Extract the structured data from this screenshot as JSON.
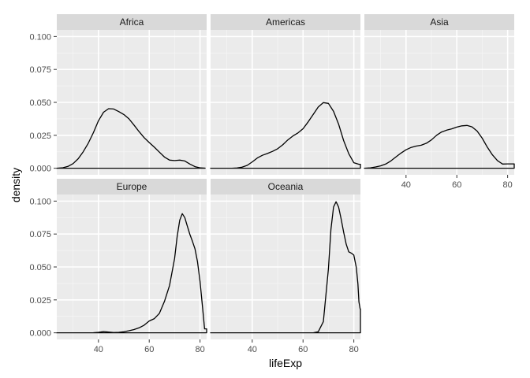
{
  "chart_data": {
    "type": "area",
    "faceted": true,
    "xlabel": "lifeExp",
    "ylabel": "density",
    "xlim": [
      23.6,
      82.6
    ],
    "ylim": [
      -0.005,
      0.105
    ],
    "x_ticks": [
      40,
      60,
      80
    ],
    "x_tick_labels": [
      "40",
      "60",
      "80"
    ],
    "y_ticks": [
      0,
      0.025,
      0.05,
      0.075,
      0.1
    ],
    "y_tick_labels": [
      "0.000",
      "0.025",
      "0.050",
      "0.075",
      "0.100"
    ],
    "grid": true,
    "colors": {
      "panel_bg": "#ebebeb",
      "grid_major": "#ffffff",
      "grid_minor": "#f5f5f5",
      "strip_bg": "#d9d9d9",
      "line": "#000000",
      "tick_text": "#4d4d4d"
    },
    "panels": [
      {
        "name": "Africa",
        "x_min": 23.6,
        "x_max": 76.4,
        "points": [
          [
            23.6,
            0
          ],
          [
            26,
            0.0004
          ],
          [
            28,
            0.0014
          ],
          [
            30,
            0.0035
          ],
          [
            32,
            0.0072
          ],
          [
            34,
            0.0125
          ],
          [
            36,
            0.019
          ],
          [
            38,
            0.027
          ],
          [
            40,
            0.036
          ],
          [
            42,
            0.0425
          ],
          [
            44,
            0.0452
          ],
          [
            46,
            0.045
          ],
          [
            48,
            0.043
          ],
          [
            50,
            0.0408
          ],
          [
            52,
            0.0375
          ],
          [
            54,
            0.0328
          ],
          [
            56,
            0.0278
          ],
          [
            58,
            0.0232
          ],
          [
            60,
            0.0195
          ],
          [
            62,
            0.016
          ],
          [
            64,
            0.0122
          ],
          [
            66,
            0.0085
          ],
          [
            68,
            0.0062
          ],
          [
            70,
            0.0058
          ],
          [
            72,
            0.0062
          ],
          [
            74,
            0.0055
          ],
          [
            76,
            0.0032
          ],
          [
            78,
            0.0012
          ],
          [
            80,
            0.0003
          ],
          [
            82,
            0.0001
          ]
        ]
      },
      {
        "name": "Americas",
        "x_min": 37.6,
        "x_max": 80.7,
        "points": [
          [
            23.6,
            0
          ],
          [
            28,
            0
          ],
          [
            32,
            0
          ],
          [
            34,
            0.0002
          ],
          [
            36,
            0.0008
          ],
          [
            38,
            0.0022
          ],
          [
            40,
            0.0048
          ],
          [
            42,
            0.0078
          ],
          [
            44,
            0.0098
          ],
          [
            46,
            0.0112
          ],
          [
            48,
            0.0128
          ],
          [
            50,
            0.0148
          ],
          [
            52,
            0.0178
          ],
          [
            54,
            0.0215
          ],
          [
            56,
            0.0245
          ],
          [
            58,
            0.0268
          ],
          [
            60,
            0.03
          ],
          [
            62,
            0.0352
          ],
          [
            64,
            0.0408
          ],
          [
            66,
            0.0465
          ],
          [
            68,
            0.0498
          ],
          [
            70,
            0.0492
          ],
          [
            72,
            0.0432
          ],
          [
            74,
            0.0335
          ],
          [
            76,
            0.021
          ],
          [
            78,
            0.011
          ],
          [
            80,
            0.0042
          ],
          [
            82,
            0.003
          ],
          [
            82.6,
            0.003
          ]
        ]
      },
      {
        "name": "Asia",
        "x_min": 28.8,
        "x_max": 82.6,
        "points": [
          [
            23.6,
            0
          ],
          [
            26,
            0.0003
          ],
          [
            28,
            0.001
          ],
          [
            30,
            0.0018
          ],
          [
            32,
            0.0032
          ],
          [
            34,
            0.0055
          ],
          [
            36,
            0.0085
          ],
          [
            38,
            0.0115
          ],
          [
            40,
            0.014
          ],
          [
            42,
            0.0158
          ],
          [
            44,
            0.0168
          ],
          [
            46,
            0.0175
          ],
          [
            48,
            0.019
          ],
          [
            50,
            0.0215
          ],
          [
            52,
            0.025
          ],
          [
            54,
            0.0275
          ],
          [
            56,
            0.0289
          ],
          [
            58,
            0.0299
          ],
          [
            60,
            0.0312
          ],
          [
            62,
            0.0322
          ],
          [
            64,
            0.0325
          ],
          [
            66,
            0.0314
          ],
          [
            68,
            0.0282
          ],
          [
            70,
            0.0228
          ],
          [
            72,
            0.016
          ],
          [
            74,
            0.0102
          ],
          [
            76,
            0.0058
          ],
          [
            78,
            0.0032
          ],
          [
            80,
            0.0033
          ],
          [
            82,
            0.0033
          ],
          [
            82.6,
            0.0033
          ]
        ]
      },
      {
        "name": "Europe",
        "x_min": 43.6,
        "x_max": 81.8,
        "points": [
          [
            23.6,
            0
          ],
          [
            30,
            0
          ],
          [
            36,
            0
          ],
          [
            38,
            0.0001
          ],
          [
            40,
            0.0004
          ],
          [
            42,
            0.001
          ],
          [
            44,
            0.0006
          ],
          [
            46,
            0.0002
          ],
          [
            48,
            0.0004
          ],
          [
            50,
            0.0008
          ],
          [
            52,
            0.0016
          ],
          [
            54,
            0.0025
          ],
          [
            56,
            0.0038
          ],
          [
            58,
            0.0058
          ],
          [
            60,
            0.009
          ],
          [
            62,
            0.0108
          ],
          [
            64,
            0.0148
          ],
          [
            66,
            0.0238
          ],
          [
            68,
            0.036
          ],
          [
            70,
            0.0565
          ],
          [
            71,
            0.073
          ],
          [
            72,
            0.0855
          ],
          [
            73,
            0.0905
          ],
          [
            74,
            0.0875
          ],
          [
            75,
            0.081
          ],
          [
            76,
            0.0748
          ],
          [
            77,
            0.0695
          ],
          [
            78,
            0.0638
          ],
          [
            79,
            0.054
          ],
          [
            80,
            0.0392
          ],
          [
            81,
            0.0195
          ],
          [
            81.8,
            0.003
          ],
          [
            82.6,
            0.003
          ]
        ]
      },
      {
        "name": "Oceania",
        "x_min": 69.1,
        "x_max": 81.2,
        "points": [
          [
            23.6,
            0
          ],
          [
            40,
            0
          ],
          [
            60,
            0
          ],
          [
            64,
            0
          ],
          [
            66,
            0.0008
          ],
          [
            68,
            0.0085
          ],
          [
            70,
            0.0485
          ],
          [
            71,
            0.0785
          ],
          [
            72,
            0.0955
          ],
          [
            73,
            0.0995
          ],
          [
            74,
            0.0955
          ],
          [
            75,
            0.0865
          ],
          [
            76,
            0.0765
          ],
          [
            77,
            0.0672
          ],
          [
            78,
            0.0615
          ],
          [
            79,
            0.0605
          ],
          [
            80,
            0.059
          ],
          [
            81,
            0.0495
          ],
          [
            81.6,
            0.0372
          ],
          [
            82,
            0.0235
          ],
          [
            82.5,
            0.018
          ],
          [
            82.6,
            0.018
          ]
        ]
      }
    ]
  }
}
